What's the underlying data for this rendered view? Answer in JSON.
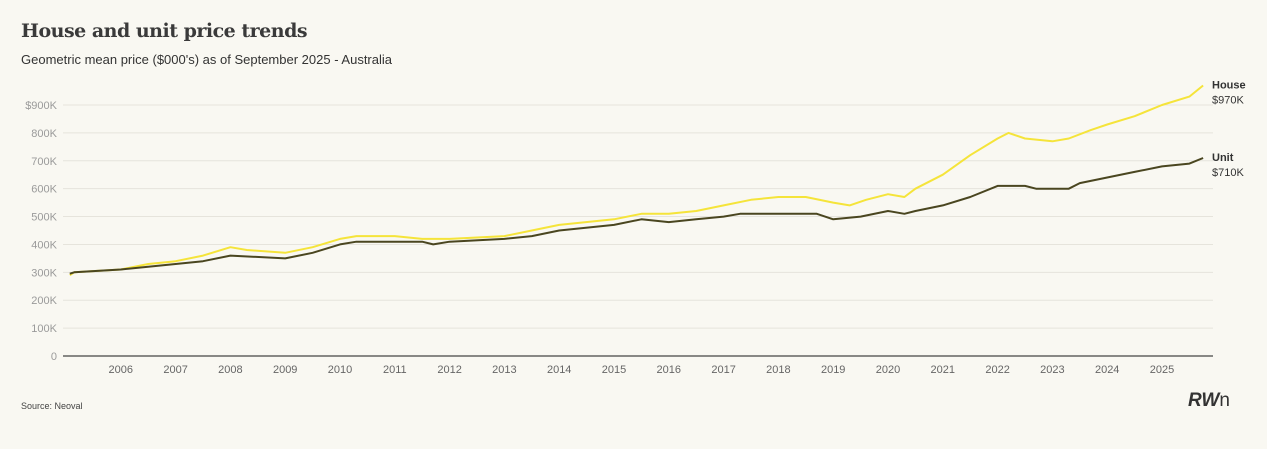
{
  "chart_data": {
    "type": "line",
    "title": "House and unit price trends",
    "subtitle": "Geometric mean price ($000's) as of September 2025 - Australia",
    "xlabel": "",
    "ylabel": "",
    "xlim": [
      2005,
      2025.9
    ],
    "ylim": [
      0,
      900
    ],
    "y_ticks": [
      0,
      100,
      200,
      300,
      400,
      500,
      600,
      700,
      800,
      900
    ],
    "y_tick_labels": [
      "0",
      "100K",
      "200K",
      "300K",
      "400K",
      "500K",
      "600K",
      "700K",
      "800K",
      "$900K"
    ],
    "x_ticks": [
      2006,
      2007,
      2008,
      2009,
      2010,
      2011,
      2012,
      2013,
      2014,
      2015,
      2016,
      2017,
      2018,
      2019,
      2020,
      2021,
      2022,
      2023,
      2024,
      2025
    ],
    "x_tick_labels": [
      "2006",
      "2007",
      "2008",
      "2009",
      "2010",
      "2011",
      "2012",
      "2013",
      "2014",
      "2015",
      "2016",
      "2017",
      "2018",
      "2019",
      "2020",
      "2021",
      "2022",
      "2023",
      "2024",
      "2025"
    ],
    "grid": true,
    "series": [
      {
        "name": "House",
        "end_label": "$970K",
        "color": "#f5e43a",
        "x": [
          2005.07,
          2005.15,
          2006,
          2006.5,
          2007,
          2007.5,
          2008,
          2008.3,
          2009,
          2009.5,
          2010,
          2010.3,
          2011,
          2011.5,
          2012,
          2013,
          2013.5,
          2014,
          2015,
          2015.5,
          2016,
          2016.5,
          2017,
          2017.5,
          2018,
          2018.5,
          2019,
          2019.3,
          2019.6,
          2020,
          2020.3,
          2020.5,
          2021,
          2021.5,
          2022,
          2022.2,
          2022.5,
          2023,
          2023.3,
          2023.7,
          2024,
          2024.5,
          2025,
          2025.5,
          2025.75
        ],
        "y": [
          290,
          300,
          310,
          330,
          340,
          360,
          390,
          380,
          370,
          390,
          420,
          430,
          430,
          420,
          420,
          430,
          450,
          470,
          490,
          510,
          510,
          520,
          540,
          560,
          570,
          570,
          550,
          540,
          560,
          580,
          570,
          600,
          650,
          720,
          780,
          800,
          780,
          770,
          780,
          810,
          830,
          860,
          900,
          930,
          970
        ]
      },
      {
        "name": "Unit",
        "end_label": "$710K",
        "color": "#4a4620",
        "x": [
          2005.07,
          2005.15,
          2006,
          2006.5,
          2007,
          2007.5,
          2008,
          2009,
          2009.5,
          2010,
          2010.3,
          2011.5,
          2011.7,
          2012,
          2013,
          2013.5,
          2014,
          2015,
          2015.5,
          2016,
          2016.5,
          2017,
          2017.3,
          2018.7,
          2019,
          2019.5,
          2020,
          2020.3,
          2020.5,
          2021,
          2021.5,
          2022,
          2022.5,
          2022.7,
          2023.3,
          2023.5,
          2024,
          2024.5,
          2025,
          2025.5,
          2025.75
        ],
        "y": [
          295,
          300,
          310,
          320,
          330,
          340,
          360,
          350,
          370,
          400,
          410,
          410,
          400,
          410,
          420,
          430,
          450,
          470,
          490,
          480,
          490,
          500,
          510,
          510,
          490,
          500,
          520,
          510,
          520,
          540,
          570,
          610,
          610,
          600,
          600,
          620,
          640,
          660,
          680,
          690,
          710
        ]
      }
    ]
  },
  "source": "Source: Neoval",
  "logo": "RWn"
}
